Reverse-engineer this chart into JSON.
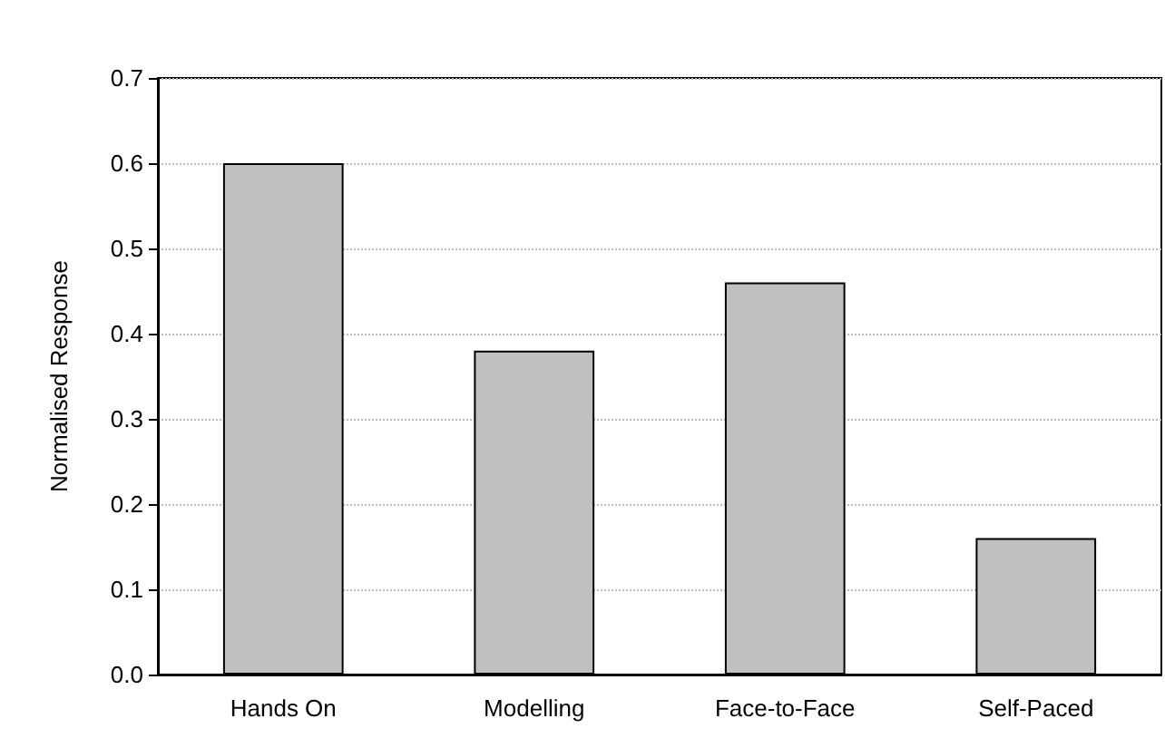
{
  "chart_data": {
    "type": "bar",
    "ylabel": "Normalised Response",
    "categories": [
      "Hands On",
      "Modelling",
      "Face-to-Face",
      "Self-Paced"
    ],
    "values": [
      0.6,
      0.38,
      0.46,
      0.16
    ],
    "color": "#c0c0c0",
    "ylim": [
      0,
      0.7
    ],
    "yticks": [
      {
        "value": 0,
        "label": "0.0"
      },
      {
        "value": 0.1,
        "label": "0.1"
      },
      {
        "value": 0.2,
        "label": "0.2"
      },
      {
        "value": 0.3,
        "label": "0.3"
      },
      {
        "value": 0.4,
        "label": "0.4"
      },
      {
        "value": 0.5,
        "label": "0.5"
      },
      {
        "value": 0.6,
        "label": "0.6"
      },
      {
        "value": 0.7,
        "label": "0.7"
      }
    ],
    "grid": "y"
  }
}
